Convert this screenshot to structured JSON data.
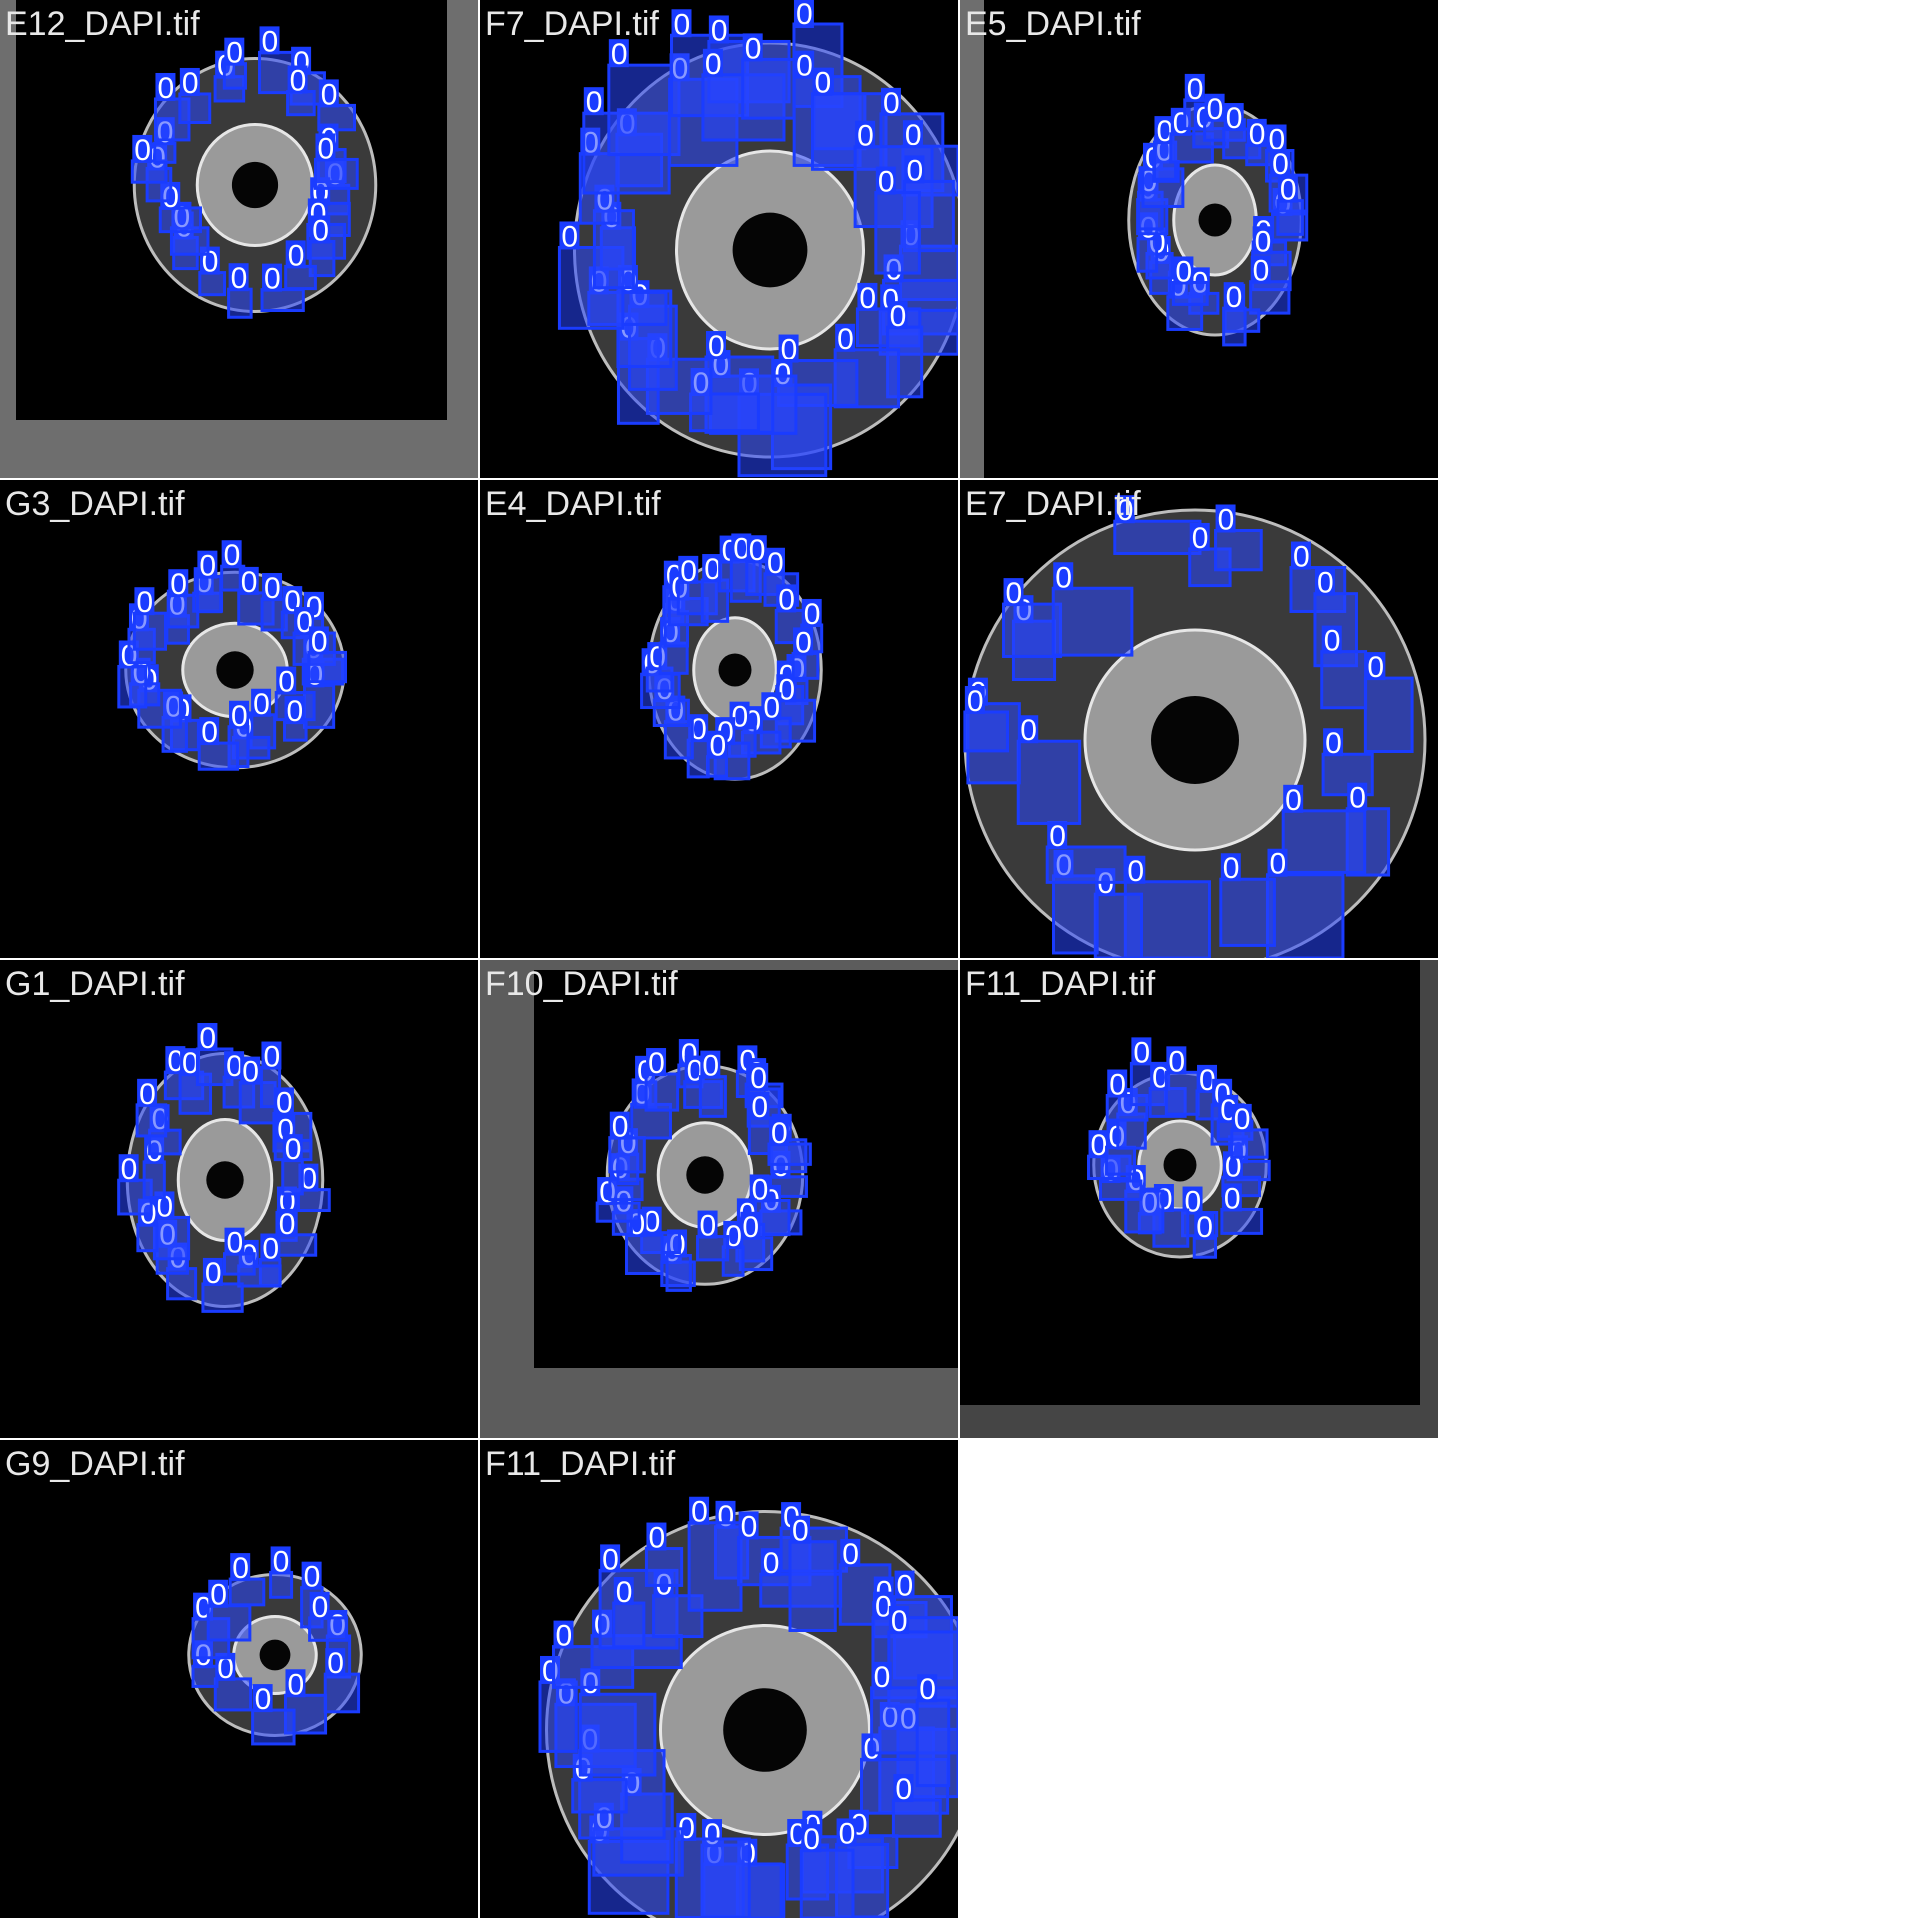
{
  "tiles": [
    {
      "name": "E12_DAPI.tif",
      "frame": "#6e6e6e",
      "detections": 24,
      "box_label": "0"
    },
    {
      "name": "F7_DAPI.tif",
      "frame": "#000000",
      "detections": 38,
      "box_label": "0"
    },
    {
      "name": "E5_DAPI.tif",
      "frame": "#6e6e6e",
      "detections": 26,
      "box_label": "0"
    },
    {
      "name": "G3_DAPI.tif",
      "frame": "#000000",
      "detections": 26,
      "box_label": "0"
    },
    {
      "name": "E4_DAPI.tif",
      "frame": "#000000",
      "detections": 26,
      "box_label": "0"
    },
    {
      "name": "E7_DAPI.tif",
      "frame": "#000000",
      "detections": 22,
      "box_label": "0"
    },
    {
      "name": "G1_DAPI.tif",
      "frame": "#000000",
      "detections": 24,
      "box_label": "0"
    },
    {
      "name": "F10_DAPI.tif",
      "frame": "#5c5c5c",
      "detections": 28,
      "box_label": "0"
    },
    {
      "name": "F11_DAPI.tif",
      "frame": "#454545",
      "detections": 20,
      "box_label": "0"
    },
    {
      "name": "G9_DAPI.tif",
      "frame": "#000000",
      "detections": 12,
      "box_label": "0"
    },
    {
      "name": "F11_DAPI.tif",
      "frame": "#000000",
      "detections": 40,
      "box_label": "0"
    }
  ],
  "colors": {
    "box": "#1a3cff",
    "box_fill": "rgba(40,70,255,0.55)",
    "background": "#ffffff",
    "divider": "#ffffff"
  }
}
